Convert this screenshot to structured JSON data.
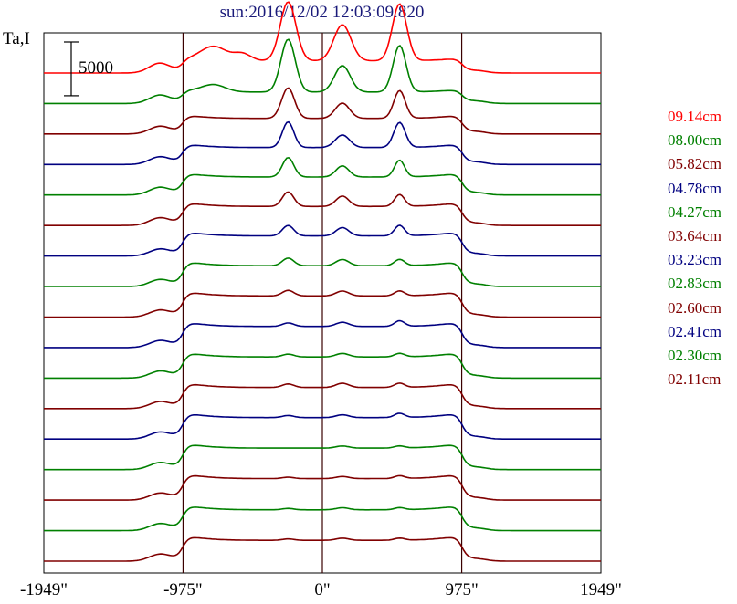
{
  "chart_data": {
    "type": "line",
    "title": "sun:2016/12/02 12:03:09.820",
    "ylabel": "Ta,I",
    "xlabel": "",
    "xlim": [
      -1949,
      1949
    ],
    "x_ticks": [
      {
        "value": -1949,
        "label": "-1949\""
      },
      {
        "value": -975,
        "label": "-975\""
      },
      {
        "value": 0,
        "label": "0\""
      },
      {
        "value": 975,
        "label": "975\""
      },
      {
        "value": 1949,
        "label": "1949\""
      }
    ],
    "reference_lines_x": [
      -975,
      0,
      975
    ],
    "scale_bar": {
      "value": 5000,
      "label": "5000"
    },
    "legend_position": "right",
    "series": [
      {
        "name": "09.14cm",
        "color": "#ff0000",
        "baseline": 67000,
        "disk": 1750,
        "peaks": [
          {
            "x": -1150,
            "amp": 1200,
            "w": 70
          },
          {
            "x": -760,
            "amp": 2000,
            "w": 90
          },
          {
            "x": -560,
            "amp": 1000,
            "w": 60
          },
          {
            "x": -240,
            "amp": 8500,
            "w": 55
          },
          {
            "x": 140,
            "amp": 5200,
            "w": 60
          },
          {
            "x": 540,
            "amp": 8200,
            "w": 50
          }
        ]
      },
      {
        "name": "08.00cm",
        "color": "#008000",
        "baseline": 62600,
        "disk": 1650,
        "peaks": [
          {
            "x": -1150,
            "amp": 1000,
            "w": 70
          },
          {
            "x": -760,
            "amp": 1000,
            "w": 80
          },
          {
            "x": -240,
            "amp": 7600,
            "w": 50
          },
          {
            "x": 140,
            "amp": 3800,
            "w": 55
          },
          {
            "x": 540,
            "amp": 6700,
            "w": 45
          }
        ]
      },
      {
        "name": "05.82cm",
        "color": "#800000",
        "baseline": 58200,
        "disk": 2250,
        "peaks": [
          {
            "x": -1150,
            "amp": 900,
            "w": 70
          },
          {
            "x": -240,
            "amp": 4400,
            "w": 45
          },
          {
            "x": 140,
            "amp": 2200,
            "w": 50
          },
          {
            "x": 540,
            "amp": 4000,
            "w": 40
          }
        ]
      },
      {
        "name": "04.78cm",
        "color": "#000080",
        "baseline": 53800,
        "disk": 2450,
        "peaks": [
          {
            "x": -1150,
            "amp": 900,
            "w": 70
          },
          {
            "x": -240,
            "amp": 3700,
            "w": 40
          },
          {
            "x": 140,
            "amp": 1800,
            "w": 50
          },
          {
            "x": 540,
            "amp": 3600,
            "w": 40
          }
        ]
      },
      {
        "name": "04.27cm",
        "color": "#008000",
        "baseline": 49400,
        "disk": 2600,
        "peaks": [
          {
            "x": -1150,
            "amp": 900,
            "w": 70
          },
          {
            "x": -240,
            "amp": 2800,
            "w": 40
          },
          {
            "x": 140,
            "amp": 1600,
            "w": 45
          },
          {
            "x": 540,
            "amp": 2400,
            "w": 35
          }
        ]
      },
      {
        "name": "03.64cm",
        "color": "#800000",
        "baseline": 45000,
        "disk": 2750,
        "peaks": [
          {
            "x": -1150,
            "amp": 900,
            "w": 70
          },
          {
            "x": -240,
            "amp": 2100,
            "w": 40
          },
          {
            "x": 140,
            "amp": 1500,
            "w": 45
          },
          {
            "x": 540,
            "amp": 1700,
            "w": 35
          }
        ]
      },
      {
        "name": "03.23cm",
        "color": "#000080",
        "baseline": 40600,
        "disk": 2900,
        "peaks": [
          {
            "x": -1150,
            "amp": 800,
            "w": 70
          },
          {
            "x": -240,
            "amp": 1500,
            "w": 40
          },
          {
            "x": 140,
            "amp": 1200,
            "w": 45
          },
          {
            "x": 540,
            "amp": 1500,
            "w": 35
          }
        ]
      },
      {
        "name": "02.83cm",
        "color": "#008000",
        "baseline": 36200,
        "disk": 3000,
        "peaks": [
          {
            "x": -1150,
            "amp": 800,
            "w": 70
          },
          {
            "x": -240,
            "amp": 1100,
            "w": 40
          },
          {
            "x": 140,
            "amp": 900,
            "w": 45
          },
          {
            "x": 540,
            "amp": 900,
            "w": 35
          }
        ]
      },
      {
        "name": "02.60cm",
        "color": "#800000",
        "baseline": 31800,
        "disk": 3050,
        "peaks": [
          {
            "x": -1150,
            "amp": 800,
            "w": 70
          },
          {
            "x": -240,
            "amp": 800,
            "w": 40
          },
          {
            "x": 140,
            "amp": 700,
            "w": 45
          },
          {
            "x": 540,
            "amp": 700,
            "w": 35
          }
        ]
      },
      {
        "name": "02.41cm",
        "color": "#000080",
        "baseline": 27400,
        "disk": 3050,
        "peaks": [
          {
            "x": -1150,
            "amp": 800,
            "w": 70
          },
          {
            "x": -240,
            "amp": 500,
            "w": 40
          },
          {
            "x": 140,
            "amp": 600,
            "w": 45
          },
          {
            "x": 540,
            "amp": 800,
            "w": 35
          }
        ]
      },
      {
        "name": "02.30cm",
        "color": "#008000",
        "baseline": 23000,
        "disk": 3050,
        "peaks": [
          {
            "x": -1150,
            "amp": 800,
            "w": 70
          },
          {
            "x": -240,
            "amp": 400,
            "w": 40
          },
          {
            "x": 140,
            "amp": 500,
            "w": 45
          },
          {
            "x": 540,
            "amp": 500,
            "w": 35
          }
        ]
      },
      {
        "name": "02.11cm",
        "color": "#800000",
        "baseline": 18600,
        "disk": 3050,
        "peaks": [
          {
            "x": -1150,
            "amp": 800,
            "w": 70
          },
          {
            "x": -240,
            "amp": 500,
            "w": 40
          },
          {
            "x": 140,
            "amp": 600,
            "w": 45
          },
          {
            "x": 540,
            "amp": 600,
            "w": 35
          }
        ]
      },
      {
        "name": "",
        "color": "#000080",
        "baseline": 14200,
        "disk": 3100,
        "peaks": [
          {
            "x": -1150,
            "amp": 800,
            "w": 70
          },
          {
            "x": -240,
            "amp": 300,
            "w": 40
          },
          {
            "x": 140,
            "amp": 400,
            "w": 45
          },
          {
            "x": 540,
            "amp": 600,
            "w": 35
          }
        ]
      },
      {
        "name": "",
        "color": "#008000",
        "baseline": 9800,
        "disk": 3100,
        "peaks": [
          {
            "x": -1150,
            "amp": 800,
            "w": 70
          },
          {
            "x": 140,
            "amp": 300,
            "w": 45
          },
          {
            "x": 540,
            "amp": 300,
            "w": 35
          }
        ]
      },
      {
        "name": "",
        "color": "#800000",
        "baseline": 5400,
        "disk": 3100,
        "peaks": [
          {
            "x": -1150,
            "amp": 800,
            "w": 70
          },
          {
            "x": -240,
            "amp": 200,
            "w": 40
          },
          {
            "x": 140,
            "amp": 300,
            "w": 45
          },
          {
            "x": 540,
            "amp": 400,
            "w": 35
          }
        ]
      },
      {
        "name": "",
        "color": "#008000",
        "baseline": 1000,
        "disk": 3000,
        "peaks": [
          {
            "x": -1150,
            "amp": 800,
            "w": 70
          },
          {
            "x": -240,
            "amp": 200,
            "w": 40
          },
          {
            "x": 140,
            "amp": 300,
            "w": 45
          },
          {
            "x": 540,
            "amp": 300,
            "w": 35
          }
        ]
      },
      {
        "name": "",
        "color": "#800000",
        "baseline": -3400,
        "disk": 3000,
        "peaks": [
          {
            "x": -1150,
            "amp": 800,
            "w": 70
          },
          {
            "x": -240,
            "amp": 200,
            "w": 40
          },
          {
            "x": 140,
            "amp": 300,
            "w": 45
          },
          {
            "x": 540,
            "amp": 300,
            "w": 35
          }
        ]
      }
    ]
  }
}
